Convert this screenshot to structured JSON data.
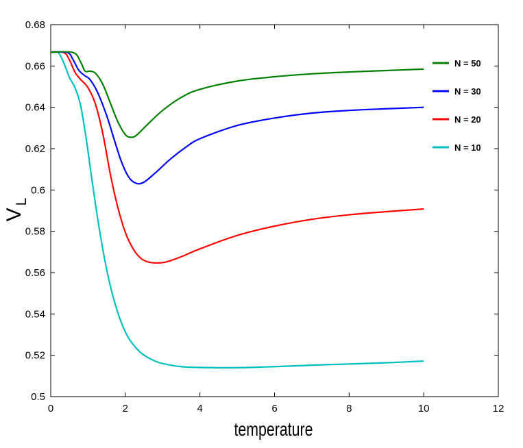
{
  "chart_data": {
    "type": "line",
    "title": "",
    "xlabel": "temperature",
    "ylabel_main": "V",
    "ylabel_sub": "L",
    "xlim": [
      0,
      12
    ],
    "ylim": [
      0.5,
      0.68
    ],
    "x_ticks": [
      "0",
      "2",
      "4",
      "6",
      "8",
      "10",
      "12"
    ],
    "y_ticks": [
      "0.5",
      "0.52",
      "0.54",
      "0.56",
      "0.58",
      "0.6",
      "0.62",
      "0.64",
      "0.66",
      "0.68"
    ],
    "grid": false,
    "legend_position": "top-right",
    "series": [
      {
        "name": "N = 50",
        "color": "#007f00",
        "points": [
          [
            0,
            0.6667
          ],
          [
            0.6,
            0.6665
          ],
          [
            0.8,
            0.662
          ],
          [
            0.92,
            0.6575
          ],
          [
            1.05,
            0.6575
          ],
          [
            1.2,
            0.6565
          ],
          [
            1.4,
            0.651
          ],
          [
            1.6,
            0.642
          ],
          [
            1.8,
            0.633
          ],
          [
            2.0,
            0.6268
          ],
          [
            2.15,
            0.6255
          ],
          [
            2.3,
            0.6265
          ],
          [
            2.6,
            0.6318
          ],
          [
            3.0,
            0.6385
          ],
          [
            3.5,
            0.6448
          ],
          [
            4.0,
            0.6487
          ],
          [
            5.0,
            0.6527
          ],
          [
            6.0,
            0.6548
          ],
          [
            7.0,
            0.6562
          ],
          [
            8.0,
            0.6571
          ],
          [
            9.0,
            0.6578
          ],
          [
            10.0,
            0.6585
          ]
        ]
      },
      {
        "name": "N = 30",
        "color": "#0000ff",
        "points": [
          [
            0,
            0.6667
          ],
          [
            0.45,
            0.6665
          ],
          [
            0.6,
            0.663
          ],
          [
            0.75,
            0.658
          ],
          [
            0.9,
            0.6555
          ],
          [
            1.05,
            0.6535
          ],
          [
            1.25,
            0.6475
          ],
          [
            1.5,
            0.636
          ],
          [
            1.7,
            0.6245
          ],
          [
            1.9,
            0.6135
          ],
          [
            2.1,
            0.606
          ],
          [
            2.3,
            0.6032
          ],
          [
            2.5,
            0.6038
          ],
          [
            2.8,
            0.6082
          ],
          [
            3.2,
            0.6148
          ],
          [
            3.6,
            0.6204
          ],
          [
            4.0,
            0.6248
          ],
          [
            5.0,
            0.6312
          ],
          [
            6.0,
            0.6348
          ],
          [
            7.0,
            0.6372
          ],
          [
            8.0,
            0.6385
          ],
          [
            9.0,
            0.6393
          ],
          [
            10.0,
            0.64
          ]
        ]
      },
      {
        "name": "N = 20",
        "color": "#ff0000",
        "points": [
          [
            0,
            0.6667
          ],
          [
            0.35,
            0.6665
          ],
          [
            0.5,
            0.663
          ],
          [
            0.65,
            0.657
          ],
          [
            0.8,
            0.6535
          ],
          [
            1.0,
            0.6495
          ],
          [
            1.2,
            0.6415
          ],
          [
            1.4,
            0.627
          ],
          [
            1.6,
            0.6075
          ],
          [
            1.8,
            0.5915
          ],
          [
            2.0,
            0.5795
          ],
          [
            2.2,
            0.5718
          ],
          [
            2.4,
            0.5672
          ],
          [
            2.6,
            0.5652
          ],
          [
            2.85,
            0.5647
          ],
          [
            3.1,
            0.5652
          ],
          [
            3.5,
            0.5677
          ],
          [
            4.0,
            0.5715
          ],
          [
            5.0,
            0.578
          ],
          [
            6.0,
            0.5825
          ],
          [
            7.0,
            0.5858
          ],
          [
            8.0,
            0.588
          ],
          [
            9.0,
            0.5895
          ],
          [
            10.0,
            0.5908
          ]
        ]
      },
      {
        "name": "N = 10",
        "color": "#00bfbf",
        "points": [
          [
            0,
            0.6667
          ],
          [
            0.2,
            0.6665
          ],
          [
            0.35,
            0.6615
          ],
          [
            0.5,
            0.6545
          ],
          [
            0.65,
            0.6495
          ],
          [
            0.8,
            0.641
          ],
          [
            0.95,
            0.625
          ],
          [
            1.1,
            0.6055
          ],
          [
            1.3,
            0.5815
          ],
          [
            1.5,
            0.5615
          ],
          [
            1.7,
            0.5465
          ],
          [
            1.9,
            0.5355
          ],
          [
            2.1,
            0.528
          ],
          [
            2.4,
            0.5215
          ],
          [
            2.7,
            0.518
          ],
          [
            3.0,
            0.516
          ],
          [
            3.5,
            0.5145
          ],
          [
            4.0,
            0.5141
          ],
          [
            5.0,
            0.514
          ],
          [
            6.0,
            0.5145
          ],
          [
            7.0,
            0.5152
          ],
          [
            8.0,
            0.5158
          ],
          [
            9.0,
            0.5164
          ],
          [
            10.0,
            0.5172
          ]
        ]
      }
    ]
  }
}
